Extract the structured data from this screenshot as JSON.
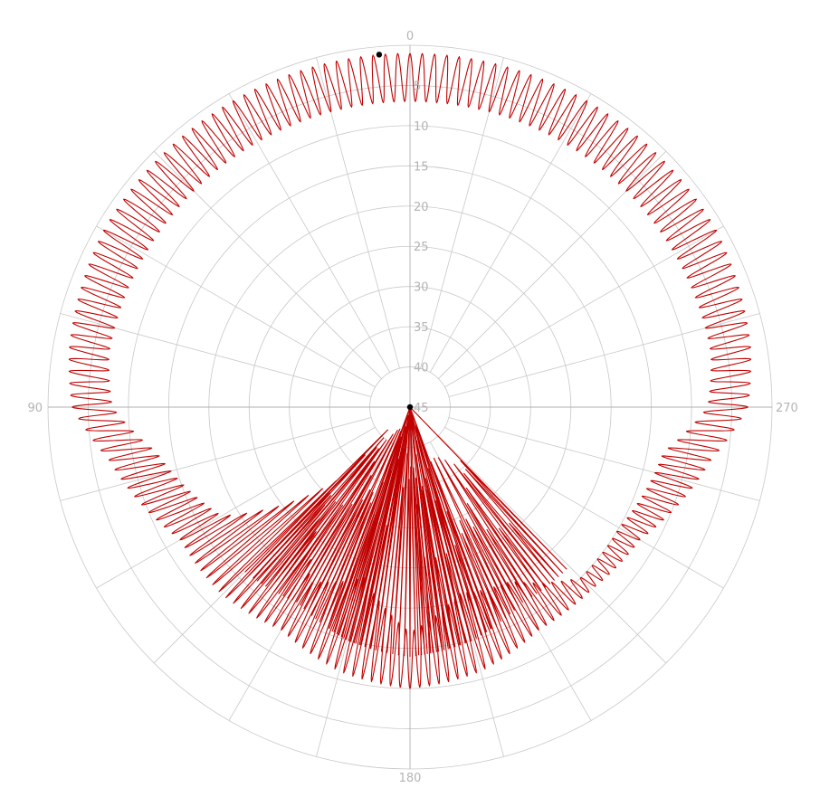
{
  "chart_data": {
    "type": "polar-line",
    "title": "",
    "angle_unit": "degrees",
    "angle_zero": "top",
    "angle_direction": "counterclockwise",
    "angle_tick_labels": [
      {
        "angle": 0,
        "label": "0"
      },
      {
        "angle": 90,
        "label": "90"
      },
      {
        "angle": 180,
        "label": "180"
      },
      {
        "angle": 270,
        "label": "270"
      }
    ],
    "angular_grid_step_deg": 15,
    "radial_axis": {
      "direction": "inward",
      "outer_value": 0,
      "center_value": 45,
      "ticks": [
        5,
        10,
        15,
        20,
        25,
        30,
        35,
        40,
        45
      ],
      "tick_labels": [
        "5",
        "10",
        "15",
        "20",
        "25",
        "30",
        "35",
        "40",
        "45"
      ],
      "label_angle_deg": 0
    },
    "grid": true,
    "legend": "none",
    "series": [
      {
        "color": "#c00000",
        "style": "oscillating",
        "oscillation_cycles": 180,
        "envelope": {
          "angle_deg": [
            0,
            20,
            40,
            60,
            80,
            90,
            100,
            120,
            135,
            150,
            165,
            180,
            195,
            210,
            225,
            240,
            260,
            270,
            280,
            300,
            320,
            340,
            360
          ],
          "outer_value": [
            1,
            1,
            1,
            1,
            2,
            3,
            7,
            12,
            12,
            13,
            11,
            10,
            11,
            13,
            13,
            12,
            7,
            3,
            2,
            1,
            1,
            1,
            1
          ],
          "inner_value": [
            7,
            7,
            7,
            7,
            7,
            8,
            13,
            18,
            32,
            20,
            23,
            17,
            21,
            20,
            15,
            15,
            13,
            8,
            7,
            7,
            7,
            7,
            7
          ]
        }
      }
    ],
    "markers": [
      {
        "angle": 5,
        "value": 1,
        "color": "#000000"
      },
      {
        "angle": 0,
        "value": 45,
        "color": "#000000"
      }
    ]
  }
}
